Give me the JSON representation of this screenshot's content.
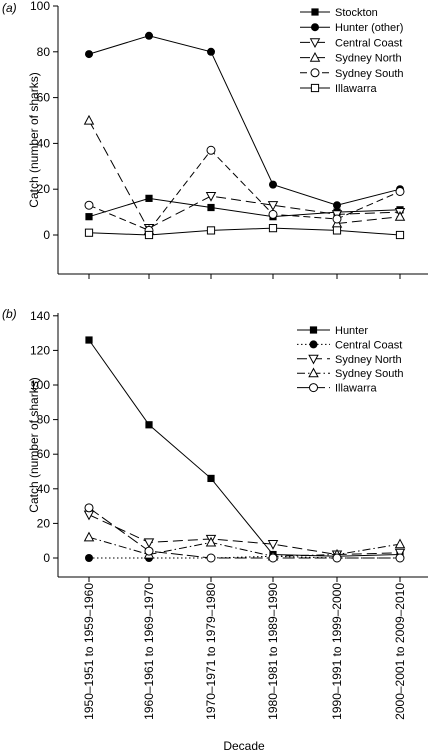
{
  "chart_data": [
    {
      "type": "line",
      "panel_label": "(a)",
      "ylabel": "Catch (number of sharks)",
      "xlabel": "",
      "categories": [
        "1950–1951 to 1959–1960",
        "1960–1961 to 1969–1970",
        "1970–1971 to 1979–1980",
        "1980–1981 to 1989–1990",
        "1990–1991 to 1999–2000",
        "2000–2001 to 2009–2010"
      ],
      "ylim": [
        -20,
        100
      ],
      "yticks": [
        0,
        20,
        40,
        60,
        80,
        100
      ],
      "legend_position": "top-right",
      "series": [
        {
          "name": "Stockton",
          "marker": "square-filled",
          "dash": "solid",
          "values": [
            8,
            16,
            12,
            8,
            10,
            11
          ]
        },
        {
          "name": "Hunter (other)",
          "marker": "circle-filled",
          "dash": "solid",
          "values": [
            79,
            87,
            80,
            22,
            13,
            20
          ]
        },
        {
          "name": "Central Coast",
          "marker": "triangle-down-open",
          "dash": "long-dash",
          "values": [
            null,
            3,
            17,
            13,
            9,
            10
          ]
        },
        {
          "name": "Sydney North",
          "marker": "triangle-up-open",
          "dash": "long-dash",
          "values": [
            50,
            2,
            null,
            null,
            5,
            8
          ]
        },
        {
          "name": "Sydney South",
          "marker": "circle-open",
          "dash": "dash",
          "values": [
            13,
            2,
            37,
            9,
            7,
            19
          ]
        },
        {
          "name": "Illawarra",
          "marker": "square-open",
          "dash": "solid",
          "values": [
            1,
            0,
            2,
            3,
            2,
            0
          ]
        }
      ]
    },
    {
      "type": "line",
      "panel_label": "(b)",
      "ylabel": "Catch (number of sharks)",
      "xlabel": "Decade",
      "categories": [
        "1950–1951 to 1959–1960",
        "1960–1961 to 1969–1970",
        "1970–1971 to 1979–1980",
        "1980–1981 to 1989–1990",
        "1990–1991 to 1999–2000",
        "2000–2001 to 2009–2010"
      ],
      "ylim": [
        -20,
        140
      ],
      "yticks": [
        0,
        20,
        40,
        60,
        80,
        100,
        120,
        140
      ],
      "legend_position": "top-right",
      "series": [
        {
          "name": "Hunter",
          "marker": "square-filled",
          "dash": "solid",
          "values": [
            126,
            77,
            46,
            2,
            1,
            2
          ]
        },
        {
          "name": "Central Coast",
          "marker": "circle-filled",
          "dash": "dot",
          "values": [
            0,
            0,
            0,
            1,
            0,
            0
          ]
        },
        {
          "name": "Sydney North",
          "marker": "triangle-down-open",
          "dash": "long-dash",
          "values": [
            25,
            9,
            11,
            8,
            2,
            3
          ]
        },
        {
          "name": "Sydney South",
          "marker": "triangle-up-open",
          "dash": "dash-dot",
          "values": [
            12,
            2,
            9,
            1,
            2,
            8
          ]
        },
        {
          "name": "Illawarra",
          "marker": "circle-open",
          "dash": "dash-long",
          "values": [
            29,
            4,
            0,
            0,
            0,
            0
          ]
        }
      ]
    }
  ]
}
